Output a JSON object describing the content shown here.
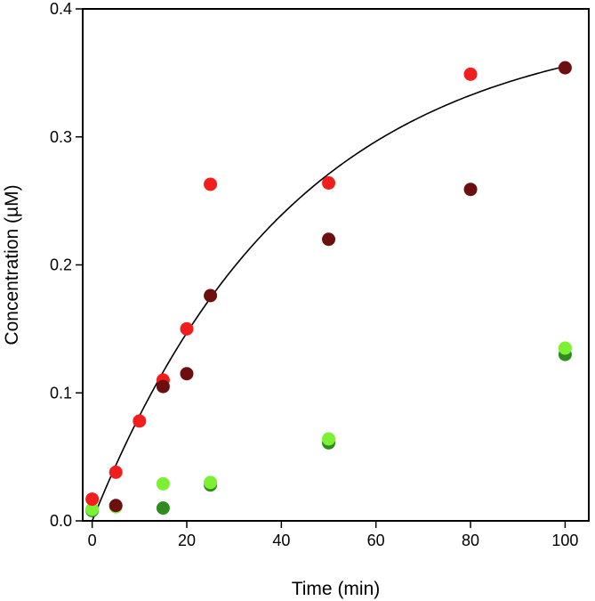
{
  "chart_data": {
    "type": "scatter",
    "xlabel": "Time (min)",
    "ylabel": "Concentration (µM)",
    "xlim": [
      -2,
      105
    ],
    "ylim": [
      0,
      0.4
    ],
    "xticks": [
      0,
      20,
      40,
      60,
      80,
      100
    ],
    "xtick_labels": [
      "0",
      "20",
      "40",
      "60",
      "80",
      "100"
    ],
    "yticks": [
      0.0,
      0.1,
      0.2,
      0.3,
      0.4
    ],
    "ytick_labels": [
      "0.0",
      "0.1",
      "0.2",
      "0.3",
      "0.4"
    ],
    "grid": false,
    "series": [
      {
        "color": "#f21d1d",
        "x": [
          0,
          5,
          10,
          15,
          20,
          25,
          50,
          80
        ],
        "y": [
          0.017,
          0.038,
          0.078,
          0.11,
          0.15,
          0.263,
          0.264,
          0.349
        ]
      },
      {
        "color": "#6e0f0f",
        "x": [
          5,
          15,
          20,
          25,
          50,
          80,
          100
        ],
        "y": [
          0.012,
          0.105,
          0.115,
          0.176,
          0.22,
          0.259,
          0.354
        ]
      },
      {
        "color": "#2e8b1e",
        "x": [
          0,
          15,
          25,
          50,
          100
        ],
        "y": [
          0.008,
          0.01,
          0.028,
          0.061,
          0.13
        ]
      },
      {
        "color": "#7cf032",
        "x": [
          0,
          5,
          15,
          25,
          50,
          100
        ],
        "y": [
          0.009,
          0.011,
          0.029,
          0.03,
          0.064,
          0.135
        ]
      }
    ],
    "fit_curve": {
      "color": "#000000",
      "model": "A*(1-exp(-k*t))",
      "A": 0.393,
      "k": 0.0234,
      "x_range": [
        0,
        100
      ]
    }
  }
}
